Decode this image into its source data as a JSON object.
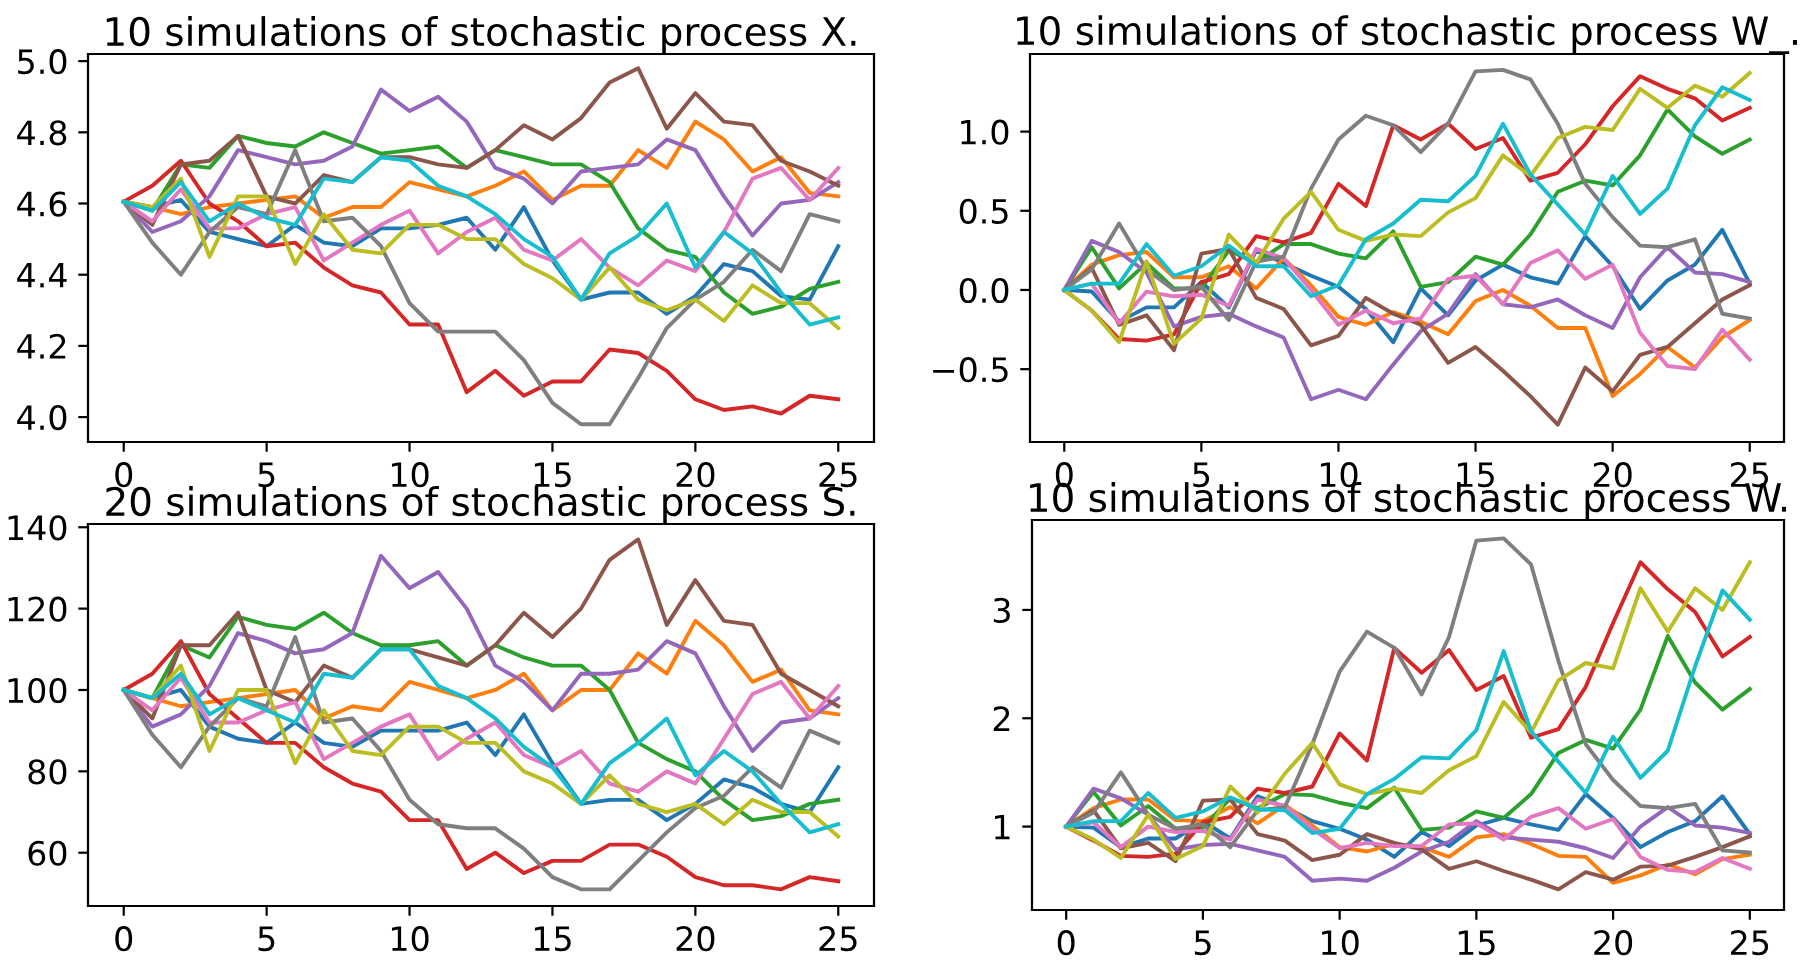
{
  "chart_data": [
    {
      "type": "line",
      "title": "10 simulations of stochastic process X.",
      "x": [
        0,
        1,
        2,
        3,
        4,
        5,
        6,
        7,
        8,
        9,
        10,
        11,
        12,
        13,
        14,
        15,
        16,
        17,
        18,
        19,
        20,
        21,
        22,
        23,
        24,
        25
      ],
      "xlim": [
        -1.25,
        26.25
      ],
      "xticks": [
        0,
        5,
        10,
        15,
        20,
        25
      ],
      "ylim": [
        3.93,
        5.02
      ],
      "yticks": [
        {
          "value": 4.0,
          "label": "4.0"
        },
        {
          "value": 4.2,
          "label": "4.2"
        },
        {
          "value": 4.4,
          "label": "4.4"
        },
        {
          "value": 4.6,
          "label": "4.6"
        },
        {
          "value": 4.8,
          "label": "4.8"
        },
        {
          "value": 5.0,
          "label": "5.0"
        }
      ],
      "grid": false,
      "legend": false,
      "series": [
        {
          "color": "#1f77b4",
          "values": [
            4.605,
            4.59,
            4.61,
            4.52,
            4.5,
            4.48,
            4.54,
            4.49,
            4.48,
            4.53,
            4.53,
            4.54,
            4.56,
            4.47,
            4.59,
            4.44,
            4.33,
            4.35,
            4.35,
            4.29,
            4.34,
            4.43,
            4.41,
            4.34,
            4.33,
            4.48
          ]
        },
        {
          "color": "#ff7f0e",
          "values": [
            4.605,
            4.59,
            4.57,
            4.59,
            4.6,
            4.61,
            4.62,
            4.56,
            4.59,
            4.59,
            4.66,
            4.64,
            4.62,
            4.65,
            4.69,
            4.61,
            4.65,
            4.65,
            4.75,
            4.7,
            4.83,
            4.78,
            4.69,
            4.73,
            4.63,
            4.62
          ]
        },
        {
          "color": "#2ca02c",
          "values": [
            4.605,
            4.58,
            4.71,
            4.7,
            4.79,
            4.77,
            4.76,
            4.8,
            4.77,
            4.74,
            4.75,
            4.76,
            4.7,
            4.75,
            4.73,
            4.71,
            4.71,
            4.66,
            4.53,
            4.47,
            4.45,
            4.35,
            4.29,
            4.31,
            4.36,
            4.38
          ]
        },
        {
          "color": "#d62728",
          "values": [
            4.605,
            4.65,
            4.72,
            4.6,
            4.55,
            4.48,
            4.49,
            4.42,
            4.37,
            4.35,
            4.26,
            4.26,
            4.07,
            4.13,
            4.06,
            4.1,
            4.1,
            4.19,
            4.18,
            4.13,
            4.05,
            4.02,
            4.03,
            4.01,
            4.06,
            4.05
          ]
        },
        {
          "color": "#9467bd",
          "values": [
            4.605,
            4.52,
            4.55,
            4.62,
            4.75,
            4.73,
            4.71,
            4.72,
            4.76,
            4.92,
            4.86,
            4.9,
            4.83,
            4.7,
            4.67,
            4.6,
            4.69,
            4.7,
            4.71,
            4.78,
            4.75,
            4.62,
            4.51,
            4.6,
            4.61,
            4.66
          ]
        },
        {
          "color": "#8c564b",
          "values": [
            4.605,
            4.54,
            4.71,
            4.72,
            4.79,
            4.62,
            4.6,
            4.68,
            4.66,
            4.73,
            4.73,
            4.71,
            4.7,
            4.75,
            4.82,
            4.78,
            4.84,
            4.94,
            4.98,
            4.81,
            4.91,
            4.83,
            4.82,
            4.72,
            4.69,
            4.65
          ]
        },
        {
          "color": "#e377c2",
          "values": [
            4.605,
            4.55,
            4.64,
            4.53,
            4.53,
            4.57,
            4.59,
            4.44,
            4.49,
            4.54,
            4.58,
            4.46,
            4.52,
            4.56,
            4.47,
            4.44,
            4.5,
            4.42,
            4.37,
            4.44,
            4.41,
            4.52,
            4.67,
            4.7,
            4.61,
            4.7
          ]
        },
        {
          "color": "#7f7f7f",
          "values": [
            4.605,
            4.49,
            4.4,
            4.52,
            4.59,
            4.57,
            4.75,
            4.55,
            4.56,
            4.48,
            4.32,
            4.24,
            4.24,
            4.24,
            4.16,
            4.04,
            3.98,
            3.98,
            4.11,
            4.25,
            4.33,
            4.38,
            4.47,
            4.41,
            4.57,
            4.55
          ]
        },
        {
          "color": "#bcbd22",
          "values": [
            4.605,
            4.59,
            4.67,
            4.45,
            4.62,
            4.62,
            4.43,
            4.57,
            4.47,
            4.46,
            4.54,
            4.54,
            4.5,
            4.5,
            4.43,
            4.39,
            4.33,
            4.42,
            4.33,
            4.3,
            4.33,
            4.27,
            4.37,
            4.32,
            4.32,
            4.25
          ]
        },
        {
          "color": "#17becf",
          "values": [
            4.605,
            4.58,
            4.66,
            4.55,
            4.6,
            4.56,
            4.54,
            4.67,
            4.66,
            4.73,
            4.72,
            4.65,
            4.62,
            4.57,
            4.5,
            4.45,
            4.33,
            4.46,
            4.51,
            4.6,
            4.42,
            4.52,
            4.46,
            4.35,
            4.26,
            4.28
          ]
        }
      ]
    },
    {
      "type": "line",
      "title": "10 simulations of stochastic process W_.",
      "x": [
        0,
        1,
        2,
        3,
        4,
        5,
        6,
        7,
        8,
        9,
        10,
        11,
        12,
        13,
        14,
        15,
        16,
        17,
        18,
        19,
        20,
        21,
        22,
        23,
        24,
        25
      ],
      "xlim": [
        -1.25,
        26.25
      ],
      "xticks": [
        0,
        5,
        10,
        15,
        20,
        25
      ],
      "ylim": [
        -0.96,
        1.49
      ],
      "yticks": [
        {
          "value": -0.5,
          "label": "−0.5"
        },
        {
          "value": 0.0,
          "label": "0.0"
        },
        {
          "value": 0.5,
          "label": "0.5"
        },
        {
          "value": 1.0,
          "label": "1.0"
        }
      ],
      "grid": false,
      "legend": false,
      "series": [
        {
          "color": "#1f77b4",
          "values": [
            0,
            -0.01,
            -0.2,
            -0.11,
            -0.11,
            0.05,
            -0.11,
            0.25,
            0.17,
            0.09,
            0.02,
            -0.12,
            -0.33,
            0.01,
            -0.16,
            0.06,
            0.16,
            0.08,
            0.04,
            0.34,
            0.15,
            -0.12,
            0.06,
            0.16,
            0.38,
            0.04
          ]
        },
        {
          "color": "#ff7f0e",
          "values": [
            0,
            0.16,
            0.22,
            0.24,
            0.08,
            0.08,
            0.15,
            0.01,
            0.2,
            0.03,
            -0.17,
            -0.22,
            -0.14,
            -0.2,
            -0.28,
            -0.07,
            0.0,
            -0.1,
            -0.24,
            -0.24,
            -0.67,
            -0.53,
            -0.36,
            -0.49,
            -0.3,
            -0.19
          ]
        },
        {
          "color": "#2ca02c",
          "values": [
            0,
            0.27,
            0.01,
            0.17,
            0.01,
            0.01,
            0.25,
            0.17,
            0.29,
            0.29,
            0.23,
            0.2,
            0.37,
            0.02,
            0.05,
            0.21,
            0.16,
            0.35,
            0.62,
            0.69,
            0.66,
            0.85,
            1.14,
            0.97,
            0.86,
            0.95
          ]
        },
        {
          "color": "#d62728",
          "values": [
            0,
            -0.13,
            -0.31,
            -0.32,
            -0.28,
            0.05,
            0.1,
            0.34,
            0.3,
            0.36,
            0.67,
            0.53,
            1.04,
            0.95,
            1.05,
            0.89,
            0.96,
            0.69,
            0.74,
            0.92,
            1.16,
            1.35,
            1.27,
            1.21,
            1.07,
            1.15
          ]
        },
        {
          "color": "#9467bd",
          "values": [
            0,
            0.31,
            0.24,
            0.11,
            -0.23,
            -0.17,
            -0.15,
            -0.23,
            -0.3,
            -0.69,
            -0.63,
            -0.69,
            -0.47,
            -0.26,
            -0.15,
            0.1,
            -0.09,
            -0.11,
            -0.06,
            -0.16,
            -0.24,
            0.08,
            0.27,
            0.11,
            0.1,
            0.05
          ]
        },
        {
          "color": "#8c564b",
          "values": [
            0,
            0.14,
            -0.22,
            -0.16,
            -0.38,
            0.23,
            0.26,
            -0.05,
            -0.12,
            -0.35,
            -0.29,
            -0.05,
            -0.15,
            -0.22,
            -0.46,
            -0.36,
            -0.51,
            -0.67,
            -0.85,
            -0.49,
            -0.64,
            -0.41,
            -0.36,
            -0.21,
            -0.06,
            0.03
          ]
        },
        {
          "color": "#e377c2",
          "values": [
            0,
            0.04,
            -0.21,
            -0.01,
            -0.04,
            -0.03,
            -0.1,
            0.26,
            0.2,
            0.0,
            -0.22,
            -0.13,
            -0.21,
            -0.18,
            0.07,
            0.09,
            -0.09,
            0.17,
            0.25,
            0.07,
            0.16,
            -0.27,
            -0.48,
            -0.5,
            -0.25,
            -0.44
          ]
        },
        {
          "color": "#7f7f7f",
          "values": [
            0,
            0.13,
            0.42,
            0.13,
            0.0,
            0.02,
            -0.19,
            0.18,
            0.21,
            0.64,
            0.95,
            1.1,
            1.04,
            0.87,
            1.05,
            1.38,
            1.39,
            1.33,
            1.05,
            0.67,
            0.46,
            0.28,
            0.27,
            0.32,
            -0.15,
            -0.18
          ]
        },
        {
          "color": "#bcbd22",
          "values": [
            0,
            -0.13,
            -0.33,
            0.18,
            -0.34,
            -0.18,
            0.35,
            0.17,
            0.45,
            0.62,
            0.38,
            0.31,
            0.35,
            0.34,
            0.49,
            0.58,
            0.85,
            0.72,
            0.96,
            1.03,
            1.01,
            1.27,
            1.15,
            1.29,
            1.22,
            1.37
          ]
        },
        {
          "color": "#17becf",
          "values": [
            0,
            0.04,
            0.04,
            0.29,
            0.09,
            0.15,
            0.28,
            0.15,
            0.15,
            -0.04,
            0.03,
            0.32,
            0.42,
            0.57,
            0.56,
            0.72,
            1.05,
            0.73,
            0.54,
            0.35,
            0.72,
            0.48,
            0.64,
            1.04,
            1.28,
            1.2
          ]
        }
      ]
    },
    {
      "type": "line",
      "title": "20 simulations of stochastic process S.",
      "x": [
        0,
        1,
        2,
        3,
        4,
        5,
        6,
        7,
        8,
        9,
        10,
        11,
        12,
        13,
        14,
        15,
        16,
        17,
        18,
        19,
        20,
        21,
        22,
        23,
        24,
        25
      ],
      "xlim": [
        -1.25,
        26.25
      ],
      "xticks": [
        0,
        5,
        10,
        15,
        20,
        25
      ],
      "ylim": [
        46.9,
        140.8
      ],
      "yticks": [
        60,
        80,
        100,
        120,
        140
      ],
      "grid": false,
      "legend": false,
      "series": [
        {
          "color": "#1f77b4",
          "values": [
            100,
            98,
            100,
            91,
            88,
            87,
            92,
            87,
            86,
            90,
            90,
            90,
            92,
            84,
            94,
            82,
            72,
            73,
            73,
            68,
            72,
            78,
            76,
            72,
            70,
            81
          ]
        },
        {
          "color": "#ff7f0e",
          "values": [
            100,
            98,
            96,
            97,
            98,
            99,
            100,
            93,
            96,
            95,
            102,
            100,
            98,
            100,
            104,
            95,
            100,
            100,
            109,
            104,
            117,
            111,
            102,
            105,
            95,
            94
          ]
        },
        {
          "color": "#2ca02c",
          "values": [
            100,
            98,
            111,
            108,
            118,
            116,
            115,
            119,
            114,
            111,
            111,
            112,
            106,
            111,
            108,
            106,
            106,
            100,
            87,
            83,
            80,
            73,
            68,
            69,
            72,
            73
          ]
        },
        {
          "color": "#d62728",
          "values": [
            100,
            104,
            112,
            99,
            93,
            87,
            87,
            81,
            77,
            75,
            68,
            68,
            56,
            60,
            55,
            58,
            58,
            62,
            62,
            59,
            54,
            52,
            52,
            51,
            54,
            53
          ]
        },
        {
          "color": "#9467bd",
          "values": [
            100,
            91,
            94,
            101,
            114,
            112,
            109,
            110,
            114,
            133,
            125,
            129,
            120,
            106,
            102,
            95,
            104,
            104,
            105,
            112,
            109,
            96,
            85,
            92,
            93,
            98
          ]
        },
        {
          "color": "#8c564b",
          "values": [
            100,
            93,
            111,
            111,
            119,
            100,
            97,
            106,
            103,
            110,
            110,
            108,
            106,
            111,
            119,
            113,
            120,
            132,
            137,
            116,
            127,
            117,
            116,
            104,
            100,
            96
          ]
        },
        {
          "color": "#e377c2",
          "values": [
            100,
            95,
            103,
            92,
            92,
            95,
            97,
            83,
            87,
            91,
            94,
            83,
            88,
            92,
            84,
            81,
            85,
            77,
            75,
            80,
            77,
            88,
            99,
            102,
            93,
            101
          ]
        },
        {
          "color": "#7f7f7f",
          "values": [
            100,
            89,
            81,
            91,
            98,
            96,
            113,
            92,
            93,
            85,
            73,
            67,
            66,
            66,
            61,
            54,
            51,
            51,
            58,
            65,
            71,
            74,
            81,
            76,
            90,
            87
          ]
        },
        {
          "color": "#bcbd22",
          "values": [
            100,
            98,
            106,
            85,
            100,
            100,
            82,
            95,
            85,
            84,
            91,
            91,
            87,
            87,
            80,
            77,
            72,
            79,
            72,
            70,
            72,
            67,
            73,
            70,
            70,
            64
          ]
        },
        {
          "color": "#17becf",
          "values": [
            100,
            98,
            104,
            94,
            98,
            95,
            92,
            104,
            103,
            110,
            110,
            101,
            98,
            93,
            86,
            81,
            72,
            82,
            87,
            93,
            79,
            85,
            80,
            72,
            65,
            67
          ]
        }
      ]
    },
    {
      "type": "line",
      "title": "10 simulations of stochastic process W.",
      "x": [
        0,
        1,
        2,
        3,
        4,
        5,
        6,
        7,
        8,
        9,
        10,
        11,
        12,
        13,
        14,
        15,
        16,
        17,
        18,
        19,
        20,
        21,
        22,
        23,
        24,
        25
      ],
      "xlim": [
        -1.25,
        26.25
      ],
      "xticks": [
        0,
        5,
        10,
        15,
        20,
        25
      ],
      "ylim": [
        0.23,
        3.83
      ],
      "yticks": [
        1,
        2,
        3
      ],
      "grid": false,
      "legend": false,
      "series": [
        {
          "color": "#1f77b4",
          "values": [
            1,
            0.99,
            0.81,
            0.89,
            0.89,
            1.05,
            0.89,
            1.28,
            1.18,
            1.05,
            0.98,
            0.88,
            0.72,
            0.95,
            0.82,
            1.01,
            1.08,
            1.02,
            0.97,
            1.3,
            1.08,
            0.81,
            0.95,
            1.05,
            1.28,
            0.93
          ]
        },
        {
          "color": "#ff7f0e",
          "values": [
            1,
            1.17,
            1.25,
            1.25,
            1.06,
            1.05,
            1.18,
            1.03,
            1.2,
            1.01,
            0.81,
            0.77,
            0.84,
            0.81,
            0.72,
            0.9,
            0.93,
            0.84,
            0.73,
            0.72,
            0.48,
            0.55,
            0.65,
            0.56,
            0.7,
            0.74
          ]
        },
        {
          "color": "#2ca02c",
          "values": [
            1,
            1.32,
            1.01,
            1.19,
            0.98,
            0.99,
            1.26,
            1.17,
            1.3,
            1.29,
            1.22,
            1.17,
            1.36,
            0.97,
            0.99,
            1.14,
            1.08,
            1.3,
            1.68,
            1.8,
            1.72,
            2.08,
            2.76,
            2.33,
            2.08,
            2.27
          ]
        },
        {
          "color": "#d62728",
          "values": [
            1,
            0.87,
            0.73,
            0.72,
            0.75,
            1.04,
            1.09,
            1.35,
            1.31,
            1.37,
            1.86,
            1.61,
            2.65,
            2.42,
            2.63,
            2.26,
            2.39,
            1.82,
            1.9,
            2.29,
            2.88,
            3.44,
            3.19,
            2.98,
            2.57,
            2.75
          ]
        },
        {
          "color": "#9467bd",
          "values": [
            1,
            1.35,
            1.26,
            1.11,
            0.79,
            0.83,
            0.84,
            0.78,
            0.72,
            0.5,
            0.52,
            0.5,
            0.62,
            0.77,
            0.86,
            1.05,
            0.9,
            0.88,
            0.86,
            0.8,
            0.71,
            1.0,
            1.18,
            1.01,
            0.99,
            0.94
          ]
        },
        {
          "color": "#8c564b",
          "values": [
            1,
            1.15,
            0.8,
            0.85,
            0.68,
            1.24,
            1.25,
            0.93,
            0.87,
            0.69,
            0.74,
            0.93,
            0.85,
            0.79,
            0.61,
            0.68,
            0.59,
            0.51,
            0.42,
            0.58,
            0.51,
            0.63,
            0.64,
            0.72,
            0.81,
            0.91
          ]
        },
        {
          "color": "#e377c2",
          "values": [
            1,
            1.04,
            0.81,
            1.0,
            0.95,
            0.96,
            0.88,
            1.25,
            1.19,
            0.98,
            0.8,
            0.85,
            0.82,
            0.82,
            1.02,
            1.03,
            0.88,
            1.09,
            1.17,
            0.98,
            1.07,
            0.72,
            0.6,
            0.58,
            0.71,
            0.61
          ]
        },
        {
          "color": "#7f7f7f",
          "values": [
            1,
            1.13,
            1.5,
            1.11,
            0.98,
            1.02,
            0.81,
            1.15,
            1.18,
            1.76,
            2.43,
            2.8,
            2.65,
            2.22,
            2.75,
            3.64,
            3.66,
            3.42,
            2.53,
            1.76,
            1.43,
            1.19,
            1.17,
            1.21,
            0.78,
            0.76
          ]
        },
        {
          "color": "#bcbd22",
          "values": [
            1,
            0.88,
            0.71,
            1.11,
            0.7,
            0.82,
            1.37,
            1.13,
            1.49,
            1.77,
            1.39,
            1.3,
            1.35,
            1.31,
            1.52,
            1.65,
            2.15,
            1.87,
            2.35,
            2.51,
            2.46,
            3.2,
            2.8,
            3.2,
            3.0,
            3.44
          ]
        },
        {
          "color": "#17becf",
          "values": [
            1,
            1.05,
            1.05,
            1.31,
            1.08,
            1.14,
            1.27,
            1.16,
            1.15,
            0.94,
            0.98,
            1.3,
            1.44,
            1.64,
            1.63,
            1.89,
            2.62,
            1.88,
            1.6,
            1.31,
            1.83,
            1.45,
            1.7,
            2.48,
            3.18,
            2.91
          ]
        }
      ]
    }
  ]
}
